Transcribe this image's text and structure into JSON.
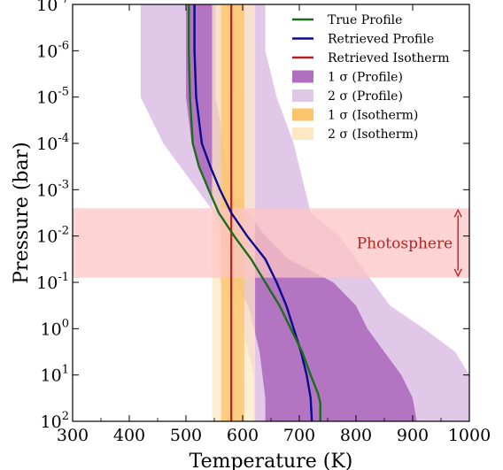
{
  "chart_data": {
    "type": "line",
    "xlabel": "Temperature (K)",
    "ylabel": "Pressure (bar)",
    "xlim": [
      300,
      1000
    ],
    "ylim_log10": [
      2,
      -7
    ],
    "y_scale": "log",
    "y_inverted": true,
    "x_ticks": [
      300,
      400,
      500,
      600,
      700,
      800,
      900,
      1000
    ],
    "y_ticks": [
      {
        "log10": -7,
        "base": "10",
        "exp": "-7"
      },
      {
        "log10": -6,
        "base": "10",
        "exp": "-6"
      },
      {
        "log10": -5,
        "base": "10",
        "exp": "-5"
      },
      {
        "log10": -4,
        "base": "10",
        "exp": "-4"
      },
      {
        "log10": -3,
        "base": "10",
        "exp": "-3"
      },
      {
        "log10": -2,
        "base": "10",
        "exp": "-2"
      },
      {
        "log10": -1,
        "base": "10",
        "exp": "-1"
      },
      {
        "log10": 0,
        "base": "10",
        "exp": "0"
      },
      {
        "log10": 1,
        "base": "10",
        "exp": "1"
      },
      {
        "log10": 2,
        "base": "10",
        "exp": "2"
      }
    ],
    "grid": false,
    "legend_position": "top-right",
    "colors": {
      "true_profile": "#1a6e1a",
      "retrieved_profile": "#0a0a8c",
      "retrieved_isotherm": "#b22222",
      "profile_1sigma": "#b070c0",
      "profile_2sigma": "#e2c8e8",
      "isotherm_1sigma": "#fdc56a",
      "isotherm_2sigma": "#fde8c4",
      "photosphere": "#fcc4c4",
      "photosphere_arrow": "#b32626"
    },
    "photosphere": {
      "label": "Photosphere",
      "log10_top": -2.6,
      "log10_bottom": -1.1,
      "arrow_temperature": 980
    },
    "series": [
      {
        "name": "True Profile",
        "role": "line",
        "points": [
          [
            505,
            -7.3
          ],
          [
            505,
            -6
          ],
          [
            507,
            -5
          ],
          [
            512,
            -4
          ],
          [
            523,
            -3.5
          ],
          [
            540,
            -3
          ],
          [
            558,
            -2.5
          ],
          [
            585,
            -2
          ],
          [
            615,
            -1.5
          ],
          [
            640,
            -1
          ],
          [
            665,
            -0.5
          ],
          [
            685,
            0
          ],
          [
            705,
            0.5
          ],
          [
            720,
            1
          ],
          [
            733,
            1.4
          ],
          [
            737,
            1.6
          ],
          [
            737,
            2.2
          ]
        ]
      },
      {
        "name": "Retrieved Profile",
        "role": "line",
        "points": [
          [
            515,
            -7.3
          ],
          [
            515,
            -6
          ],
          [
            518,
            -5
          ],
          [
            528,
            -4
          ],
          [
            543,
            -3.5
          ],
          [
            560,
            -3
          ],
          [
            580,
            -2.5
          ],
          [
            608,
            -2
          ],
          [
            640,
            -1.5
          ],
          [
            660,
            -1
          ],
          [
            677,
            -0.5
          ],
          [
            690,
            0
          ],
          [
            703,
            0.5
          ],
          [
            713,
            1
          ],
          [
            720,
            1.5
          ],
          [
            723,
            2.2
          ]
        ]
      },
      {
        "name": "Retrieved Isotherm",
        "role": "vline",
        "value": 580
      },
      {
        "name": "1 σ (Profile)",
        "role": "band",
        "lower": [
          [
            500,
            -7.3
          ],
          [
            500,
            -5
          ],
          [
            510,
            -4
          ],
          [
            525,
            -3.5
          ],
          [
            555,
            -2.5
          ],
          [
            565,
            -2
          ],
          [
            575,
            -1.5
          ],
          [
            585,
            -1
          ],
          [
            610,
            -0.5
          ],
          [
            630,
            0.5
          ],
          [
            640,
            1.5
          ],
          [
            640,
            2.2
          ]
        ],
        "upper": [
          [
            552,
            -7.3
          ],
          [
            552,
            -5
          ],
          [
            560,
            -4.5
          ],
          [
            565,
            -4
          ],
          [
            580,
            -3
          ],
          [
            640,
            -2
          ],
          [
            680,
            -1.5
          ],
          [
            760,
            -1
          ],
          [
            800,
            -0.5
          ],
          [
            820,
            0
          ],
          [
            850,
            0.5
          ],
          [
            880,
            1
          ],
          [
            900,
            1.5
          ],
          [
            910,
            2.2
          ]
        ]
      },
      {
        "name": "2 σ (Profile)",
        "role": "band",
        "lower": [
          [
            420,
            -7.3
          ],
          [
            420,
            -5
          ],
          [
            460,
            -4
          ],
          [
            490,
            -3.5
          ],
          [
            520,
            -3
          ],
          [
            550,
            -2.5
          ],
          [
            560,
            -2
          ],
          [
            560,
            -1
          ],
          [
            590,
            -0.5
          ],
          [
            600,
            0
          ],
          [
            610,
            0.5
          ],
          [
            620,
            1
          ],
          [
            620,
            2.2
          ]
        ],
        "upper": [
          [
            640,
            -7.3
          ],
          [
            640,
            -6
          ],
          [
            660,
            -5
          ],
          [
            690,
            -4
          ],
          [
            700,
            -3.5
          ],
          [
            720,
            -2.5
          ],
          [
            770,
            -2
          ],
          [
            800,
            -1.5
          ],
          [
            830,
            -1
          ],
          [
            860,
            -0.5
          ],
          [
            920,
            0
          ],
          [
            975,
            0.5
          ],
          [
            1000,
            1
          ],
          [
            1000,
            2.2
          ]
        ]
      },
      {
        "name": "1 σ (Isotherm)",
        "role": "vband",
        "lower": 562,
        "upper": 603
      },
      {
        "name": "2 σ (Isotherm)",
        "role": "vband",
        "lower": 546,
        "upper": 622
      }
    ]
  }
}
